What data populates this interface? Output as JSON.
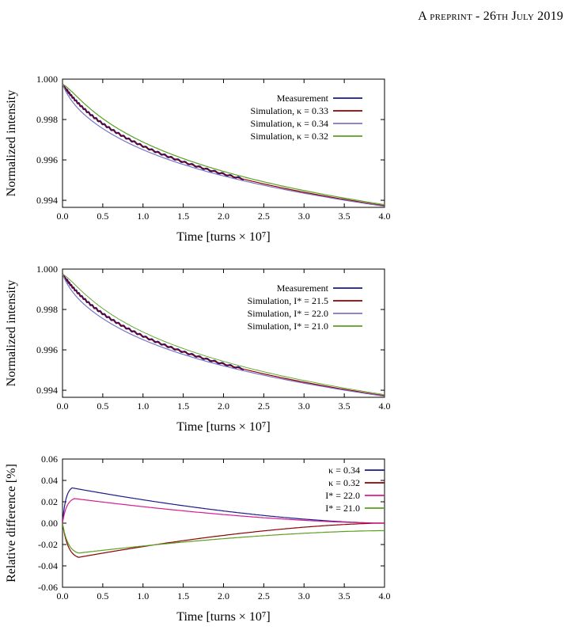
{
  "header": {
    "title": "A preprint - 26th July 2019"
  },
  "chart_data": [
    {
      "type": "line",
      "xlabel": "Time [turns × 10⁷]",
      "ylabel": "Normalized intensity",
      "xlim": [
        0,
        4.0
      ],
      "ylim": [
        0.99365,
        1.0
      ],
      "x_ticks": [
        "0.0",
        "0.5",
        "1.0",
        "1.5",
        "2.0",
        "2.5",
        "3.0",
        "3.5",
        "4.0"
      ],
      "y_ticks": [
        "1.000",
        "0.998",
        "0.996",
        "0.994"
      ],
      "legend_position": "top-right",
      "series": [
        {
          "name": "Measurement",
          "color": "#1a1a8c",
          "end": 2.25
        },
        {
          "name": "Simulation, κ = 0.33",
          "color": "#8b0000"
        },
        {
          "name": "Simulation, κ = 0.34",
          "color": "#7b74c2"
        },
        {
          "name": "Simulation, κ = 0.32",
          "color": "#5aa020"
        }
      ]
    },
    {
      "type": "line",
      "xlabel": "Time [turns × 10⁷]",
      "ylabel": "Normalized intensity",
      "xlim": [
        0,
        4.0
      ],
      "ylim": [
        0.99365,
        1.0
      ],
      "x_ticks": [
        "0.0",
        "0.5",
        "1.0",
        "1.5",
        "2.0",
        "2.5",
        "3.0",
        "3.5",
        "4.0"
      ],
      "y_ticks": [
        "1.000",
        "0.998",
        "0.996",
        "0.994"
      ],
      "legend_position": "top-right",
      "series": [
        {
          "name": "Measurement",
          "color": "#1a1a8c",
          "end": 2.25
        },
        {
          "name": "Simulation, I* = 21.5",
          "color": "#8b0000"
        },
        {
          "name": "Simulation, I* = 22.0",
          "color": "#7b74c2"
        },
        {
          "name": "Simulation, I* = 21.0",
          "color": "#5aa020"
        }
      ]
    },
    {
      "type": "line",
      "xlabel": "Time [turns × 10⁷]",
      "ylabel": "Relative difference [%]",
      "xlim": [
        0,
        4.0
      ],
      "ylim": [
        -0.06,
        0.06
      ],
      "x_ticks": [
        "0.0",
        "0.5",
        "1.0",
        "1.5",
        "2.0",
        "2.5",
        "3.0",
        "3.5",
        "4.0"
      ],
      "y_ticks": [
        "0.06",
        "0.04",
        "0.02",
        "0.00",
        "-0.02",
        "-0.04",
        "-0.06"
      ],
      "legend_position": "top-right",
      "series": [
        {
          "name": "κ = 0.34",
          "color": "#1a1a8c",
          "peak_x": 0.12,
          "peak_y": 0.033
        },
        {
          "name": "κ = 0.32",
          "color": "#8b0000",
          "peak_x": 0.2,
          "peak_y": -0.032
        },
        {
          "name": "I* = 22.0",
          "color": "#d81b8c",
          "peak_x": 0.15,
          "peak_y": 0.023
        },
        {
          "name": "I* = 21.0",
          "color": "#5aa020",
          "peak_x": 0.2,
          "peak_y": -0.028,
          "end_y": -0.007
        }
      ]
    }
  ]
}
